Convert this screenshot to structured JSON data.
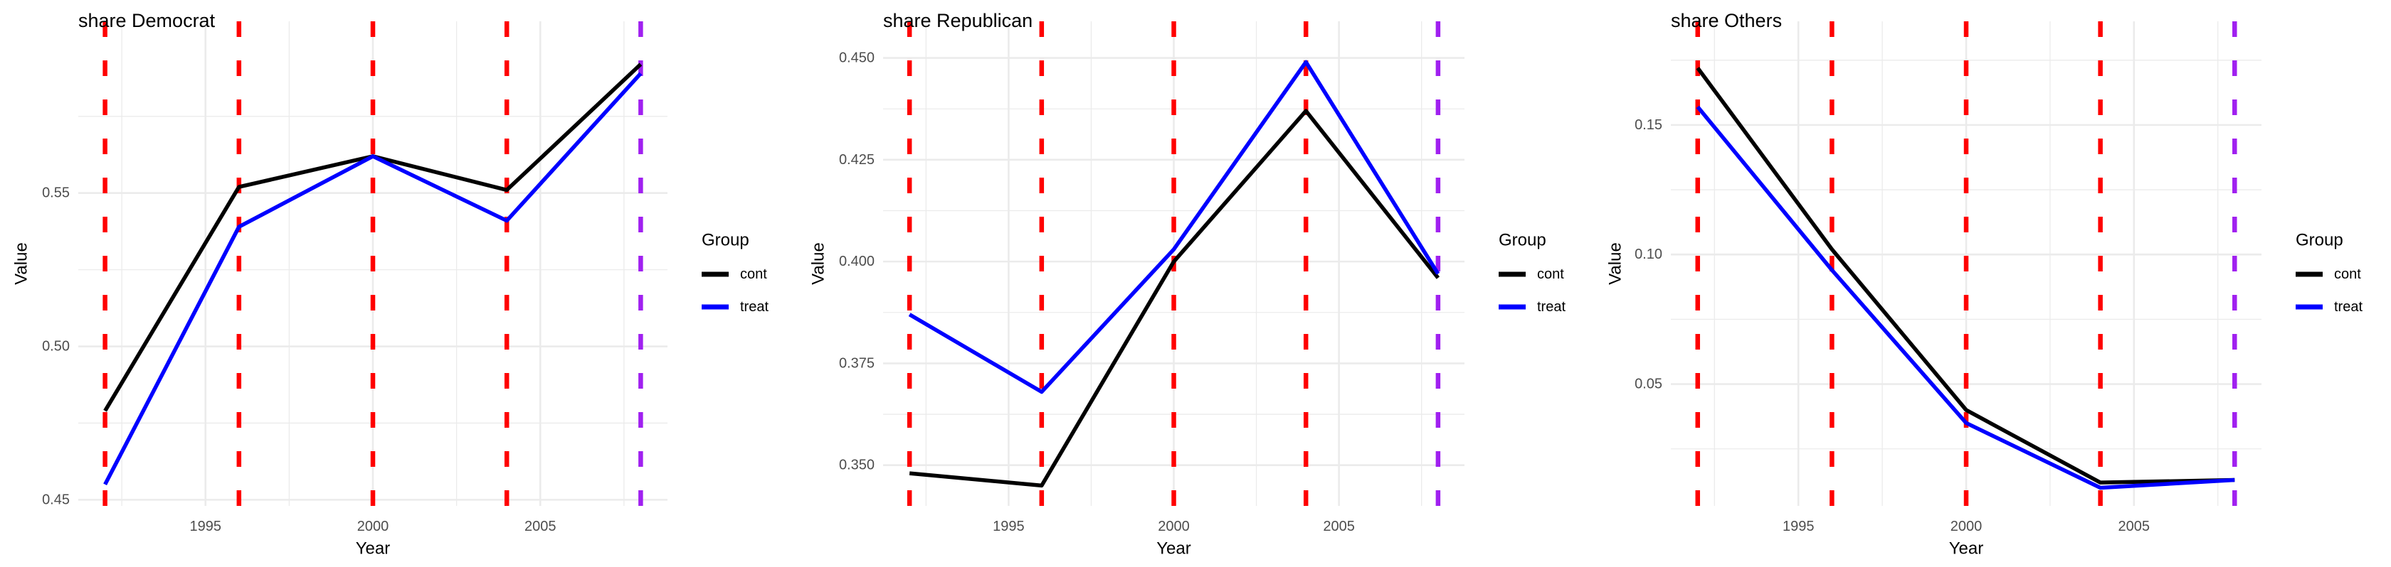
{
  "figure": {
    "kind": "faceted line charts (event-study style vote shares)",
    "n_charts": 3
  },
  "colors": {
    "cont": "#000000",
    "treat": "#0000FF",
    "event_vline": "#FF0000",
    "final_vline": "#A020F0",
    "gridline": "#EBEBEB",
    "tick_label": "#4D4D4D",
    "text": "#000000",
    "background": "#FFFFFF"
  },
  "legend": {
    "title": "Group",
    "items": [
      {
        "label": "cont",
        "color_key": "cont"
      },
      {
        "label": "treat",
        "color_key": "treat"
      }
    ]
  },
  "axes": {
    "x_label": "Year",
    "y_label": "Value",
    "x_ticks": [
      {
        "value": 1995,
        "label": "1995"
      },
      {
        "value": 2000,
        "label": "2000"
      },
      {
        "value": 2005,
        "label": "2005"
      }
    ],
    "x_minor": [
      1992.5,
      1997.5,
      2002.5,
      2007.5
    ],
    "xlim": [
      1991.2,
      2008.8
    ]
  },
  "chart_data": [
    {
      "type": "line",
      "title": "share Democrat",
      "xlabel": "Year",
      "ylabel": "Value",
      "x": [
        1992,
        1996,
        2000,
        2004,
        2008
      ],
      "series": [
        {
          "name": "cont",
          "color_key": "cont",
          "values": [
            0.479,
            0.552,
            0.562,
            0.551,
            0.592
          ]
        },
        {
          "name": "treat",
          "color_key": "treat",
          "values": [
            0.455,
            0.539,
            0.562,
            0.541,
            0.589
          ]
        }
      ],
      "ylim": [
        0.448,
        0.606
      ],
      "y_ticks": [
        {
          "value": 0.45,
          "label": "0.45"
        },
        {
          "value": 0.5,
          "label": "0.50"
        },
        {
          "value": 0.55,
          "label": "0.55"
        }
      ],
      "y_minor": [
        0.475,
        0.525,
        0.575
      ],
      "vlines": [
        {
          "x": 1992,
          "color_key": "event_vline"
        },
        {
          "x": 1996,
          "color_key": "event_vline"
        },
        {
          "x": 2000,
          "color_key": "event_vline"
        },
        {
          "x": 2004,
          "color_key": "event_vline"
        },
        {
          "x": 2008,
          "color_key": "final_vline"
        }
      ],
      "legend_position": "right"
    },
    {
      "type": "line",
      "title": "share Republican",
      "xlabel": "Year",
      "ylabel": "Value",
      "x": [
        1992,
        1996,
        2000,
        2004,
        2008
      ],
      "series": [
        {
          "name": "cont",
          "color_key": "cont",
          "values": [
            0.348,
            0.345,
            0.4,
            0.437,
            0.396
          ]
        },
        {
          "name": "treat",
          "color_key": "treat",
          "values": [
            0.387,
            0.368,
            0.403,
            0.449,
            0.397
          ]
        }
      ],
      "ylim": [
        0.34,
        0.459
      ],
      "y_ticks": [
        {
          "value": 0.35,
          "label": "0.350"
        },
        {
          "value": 0.375,
          "label": "0.375"
        },
        {
          "value": 0.4,
          "label": "0.400"
        },
        {
          "value": 0.425,
          "label": "0.425"
        },
        {
          "value": 0.45,
          "label": "0.450"
        }
      ],
      "y_minor": [
        0.3625,
        0.3875,
        0.4125,
        0.4375
      ],
      "vlines": [
        {
          "x": 1992,
          "color_key": "event_vline"
        },
        {
          "x": 1996,
          "color_key": "event_vline"
        },
        {
          "x": 2000,
          "color_key": "event_vline"
        },
        {
          "x": 2004,
          "color_key": "event_vline"
        },
        {
          "x": 2008,
          "color_key": "final_vline"
        }
      ],
      "legend_position": "right"
    },
    {
      "type": "line",
      "title": "share Others",
      "xlabel": "Year",
      "ylabel": "Value",
      "x": [
        1992,
        1996,
        2000,
        2004,
        2008
      ],
      "series": [
        {
          "name": "cont",
          "color_key": "cont",
          "values": [
            0.172,
            0.102,
            0.04,
            0.012,
            0.013
          ]
        },
        {
          "name": "treat",
          "color_key": "treat",
          "values": [
            0.157,
            0.094,
            0.035,
            0.01,
            0.013
          ]
        }
      ],
      "ylim": [
        0.003,
        0.19
      ],
      "y_ticks": [
        {
          "value": 0.05,
          "label": "0.05"
        },
        {
          "value": 0.1,
          "label": "0.10"
        },
        {
          "value": 0.15,
          "label": "0.15"
        }
      ],
      "y_minor": [
        0.025,
        0.075,
        0.125,
        0.175
      ],
      "vlines": [
        {
          "x": 1992,
          "color_key": "event_vline"
        },
        {
          "x": 1996,
          "color_key": "event_vline"
        },
        {
          "x": 2000,
          "color_key": "event_vline"
        },
        {
          "x": 2004,
          "color_key": "event_vline"
        },
        {
          "x": 2008,
          "color_key": "final_vline"
        }
      ],
      "legend_position": "right"
    }
  ]
}
